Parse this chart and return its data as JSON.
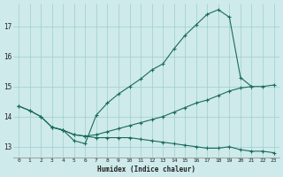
{
  "xlabel": "Humidex (Indice chaleur)",
  "bg_color": "#ceeaea",
  "line_color": "#1a6b5a",
  "grid_color": "#9ecece",
  "xlim": [
    -0.5,
    23.5
  ],
  "ylim": [
    12.65,
    17.75
  ],
  "yticks": [
    13,
    14,
    15,
    16,
    17
  ],
  "xticks": [
    0,
    1,
    2,
    3,
    4,
    5,
    6,
    7,
    8,
    9,
    10,
    11,
    12,
    13,
    14,
    15,
    16,
    17,
    18,
    19,
    20,
    21,
    22,
    23
  ],
  "line1_x": [
    0,
    1,
    2,
    3,
    4,
    5,
    6,
    7,
    8,
    9,
    10,
    11,
    12,
    13,
    14,
    15,
    16,
    17,
    18,
    19,
    20,
    21
  ],
  "line1_y": [
    14.35,
    14.2,
    14.0,
    13.65,
    13.55,
    13.2,
    13.1,
    14.05,
    14.45,
    14.75,
    15.0,
    15.25,
    15.55,
    15.75,
    16.25,
    16.7,
    17.05,
    17.4,
    17.55,
    17.3,
    15.3,
    15.0
  ],
  "line2_x": [
    0,
    1,
    2,
    3,
    4,
    5,
    6,
    7,
    8,
    9,
    10,
    11,
    12,
    13,
    14,
    15,
    16,
    17,
    18,
    19,
    20,
    21,
    22,
    23
  ],
  "line2_y": [
    14.35,
    14.2,
    14.0,
    13.65,
    13.55,
    13.4,
    13.35,
    13.4,
    13.5,
    13.6,
    13.7,
    13.8,
    13.9,
    14.0,
    14.15,
    14.3,
    14.45,
    14.55,
    14.7,
    14.85,
    14.95,
    15.0,
    15.0,
    15.05
  ],
  "line3_x": [
    3,
    4,
    5,
    6,
    7,
    8,
    9,
    10,
    11,
    12,
    13,
    14,
    15,
    16,
    17,
    18,
    19,
    20,
    21,
    22,
    23
  ],
  "line3_y": [
    13.65,
    13.55,
    13.4,
    13.35,
    13.3,
    13.3,
    13.3,
    13.3,
    13.25,
    13.2,
    13.15,
    13.1,
    13.05,
    13.0,
    12.95,
    12.95,
    13.0,
    12.9,
    12.85,
    12.85,
    12.8
  ]
}
